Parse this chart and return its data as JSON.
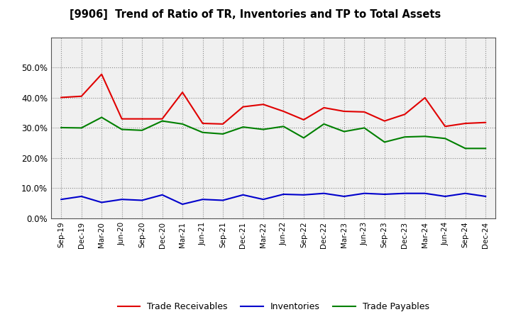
{
  "title": "[9906]  Trend of Ratio of TR, Inventories and TP to Total Assets",
  "labels": [
    "Sep-19",
    "Dec-19",
    "Mar-20",
    "Jun-20",
    "Sep-20",
    "Dec-20",
    "Mar-21",
    "Jun-21",
    "Sep-21",
    "Dec-21",
    "Mar-22",
    "Jun-22",
    "Sep-22",
    "Dec-22",
    "Mar-23",
    "Jun-23",
    "Sep-23",
    "Dec-23",
    "Mar-24",
    "Jun-24",
    "Sep-24",
    "Dec-24"
  ],
  "trade_receivables": [
    0.401,
    0.405,
    0.478,
    0.33,
    0.33,
    0.33,
    0.418,
    0.315,
    0.313,
    0.37,
    0.378,
    0.355,
    0.327,
    0.367,
    0.355,
    0.353,
    0.323,
    0.345,
    0.4,
    0.305,
    0.315,
    0.318
  ],
  "inventories": [
    0.063,
    0.073,
    0.053,
    0.063,
    0.06,
    0.078,
    0.047,
    0.063,
    0.06,
    0.078,
    0.063,
    0.08,
    0.078,
    0.083,
    0.073,
    0.083,
    0.08,
    0.083,
    0.083,
    0.073,
    0.083,
    0.073
  ],
  "trade_payables": [
    0.301,
    0.3,
    0.335,
    0.295,
    0.292,
    0.323,
    0.313,
    0.285,
    0.28,
    0.303,
    0.295,
    0.305,
    0.267,
    0.313,
    0.288,
    0.3,
    0.253,
    0.27,
    0.272,
    0.265,
    0.232,
    0.232
  ],
  "tr_color": "#e00000",
  "inv_color": "#0000cc",
  "tp_color": "#008000",
  "ylim": [
    0.0,
    0.6
  ],
  "yticks": [
    0.0,
    0.1,
    0.2,
    0.3,
    0.4,
    0.5
  ],
  "background_color": "#ffffff",
  "plot_bg_color": "#f0f0f0",
  "grid_color": "#888888",
  "legend_labels": [
    "Trade Receivables",
    "Inventories",
    "Trade Payables"
  ]
}
